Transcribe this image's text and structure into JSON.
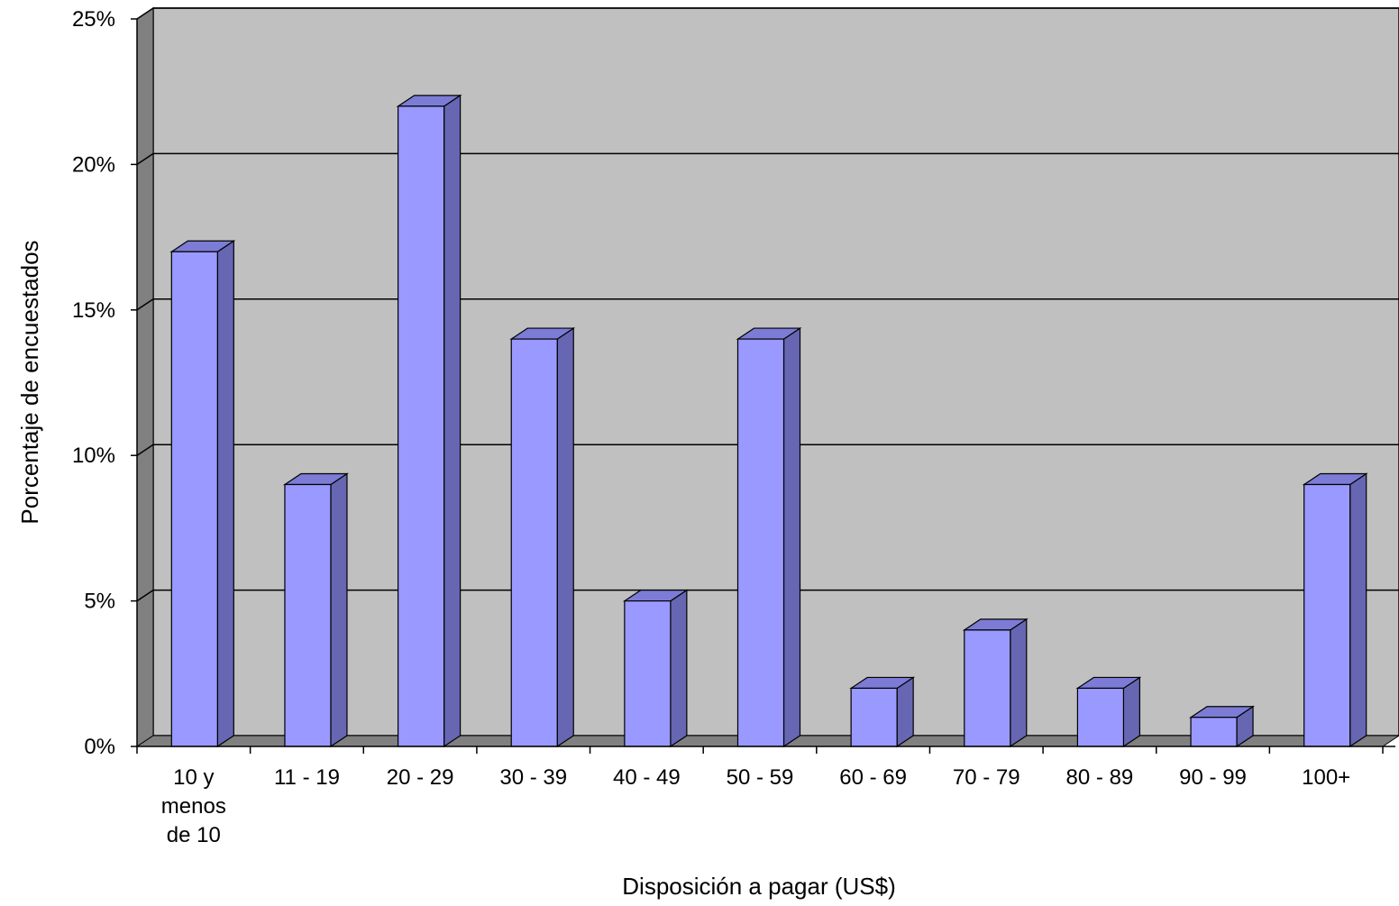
{
  "chart_data": {
    "type": "bar",
    "title": "",
    "xlabel": "Disposición a pagar (US$)",
    "ylabel": "Porcentaje de encuestados",
    "categories": [
      [
        "10 y",
        "menos",
        "de 10"
      ],
      [
        "11 - 19"
      ],
      [
        "20 - 29"
      ],
      [
        "30 - 39"
      ],
      [
        "40 - 49"
      ],
      [
        "50 - 59"
      ],
      [
        "60 - 69"
      ],
      [
        "70 - 79"
      ],
      [
        "80 - 89"
      ],
      [
        "90 - 99"
      ],
      [
        "100+"
      ]
    ],
    "values": [
      17,
      9,
      22,
      14,
      5,
      14,
      2,
      4,
      2,
      1,
      9
    ],
    "ylim": [
      0,
      25
    ],
    "yticks": [
      0,
      5,
      10,
      15,
      20,
      25
    ],
    "ytick_labels": [
      "0%",
      "5%",
      "10%",
      "15%",
      "20%",
      "25%"
    ],
    "grid": true,
    "legend": "none",
    "style": "3d-column",
    "colors": {
      "bar_front": "#9999ff",
      "bar_side": "#6666b3",
      "bar_top": "#7c7cd6",
      "plot_back_wall": "#c0c0c0",
      "side_wall": "#808080",
      "floor": "#808080",
      "gridline": "#000000"
    }
  }
}
